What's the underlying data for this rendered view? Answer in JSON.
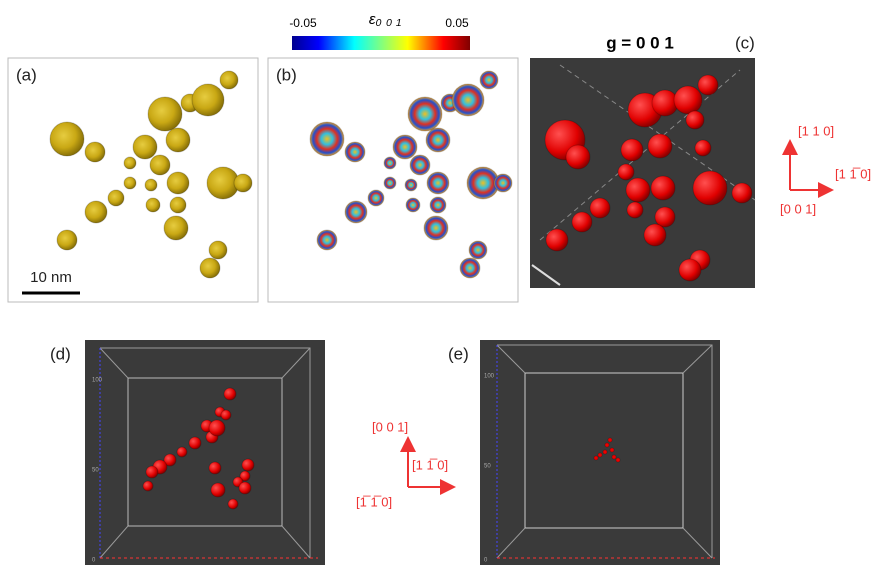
{
  "panels": [
    {
      "label": "(a)",
      "scale_bar": "10 nm"
    },
    {
      "label": "(b)",
      "colorbar": {
        "min_label": "-0.05",
        "title": "ε₀ ₀ ₁",
        "max_label": "0.05"
      }
    },
    {
      "label": "(c)",
      "title": "g = 0 0 1"
    },
    {
      "label": "(d)",
      "axis_ticks": [
        "100",
        "50",
        "0"
      ]
    },
    {
      "label": "(e)",
      "axis_ticks": [
        "100",
        "50",
        "0"
      ]
    }
  ],
  "axes_top": [
    "[1 1 0]",
    "[1 1̅ 0]",
    "[0 0 1]"
  ],
  "axes_bottom": [
    "[0 0 1]",
    "[1 1̅ 0]",
    "[1̅ 1̅ 0]"
  ]
}
